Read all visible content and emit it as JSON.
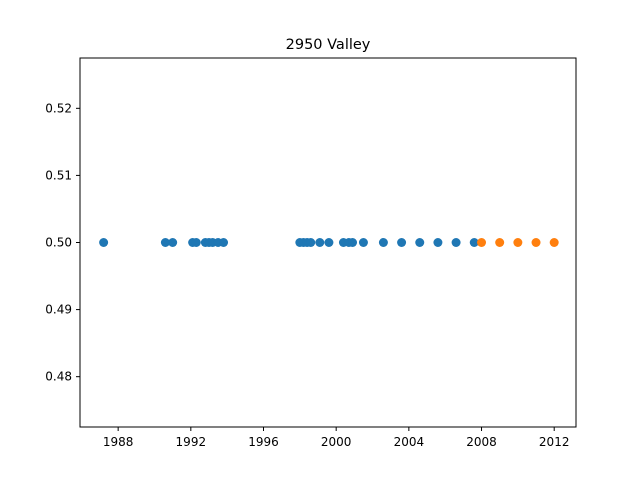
{
  "chart_data": {
    "type": "scatter",
    "title": "2950 Valley",
    "xlabel": "",
    "ylabel": "",
    "xlim": [
      1985.9,
      2013.2
    ],
    "ylim": [
      0.4725,
      0.5275
    ],
    "x_ticks": [
      1988,
      1992,
      1996,
      2000,
      2004,
      2008,
      2012
    ],
    "y_ticks": [
      0.48,
      0.49,
      0.5,
      0.51,
      0.52
    ],
    "y_tick_labels": [
      "0.48",
      "0.49",
      "0.50",
      "0.51",
      "0.52"
    ],
    "grid": false,
    "series": [
      {
        "color": "#1f77b4",
        "x": [
          1987.2,
          1990.6,
          1991.0,
          1992.1,
          1992.3,
          1992.8,
          1993.0,
          1993.2,
          1993.5,
          1993.8,
          1998.0,
          1998.2,
          1998.4,
          1998.6,
          1999.1,
          1999.6,
          2000.4,
          2000.7,
          2000.9,
          2001.5,
          2002.6,
          2003.6,
          2004.6,
          2005.6,
          2006.6,
          2007.6
        ],
        "y": [
          0.5,
          0.5,
          0.5,
          0.5,
          0.5,
          0.5,
          0.5,
          0.5,
          0.5,
          0.5,
          0.5,
          0.5,
          0.5,
          0.5,
          0.5,
          0.5,
          0.5,
          0.5,
          0.5,
          0.5,
          0.5,
          0.5,
          0.5,
          0.5,
          0.5,
          0.5
        ]
      },
      {
        "color": "#ff7f0e",
        "x": [
          2008.0,
          2009.0,
          2010.0,
          2011.0,
          2012.0
        ],
        "y": [
          0.5,
          0.5,
          0.5,
          0.5,
          0.5
        ]
      }
    ]
  }
}
